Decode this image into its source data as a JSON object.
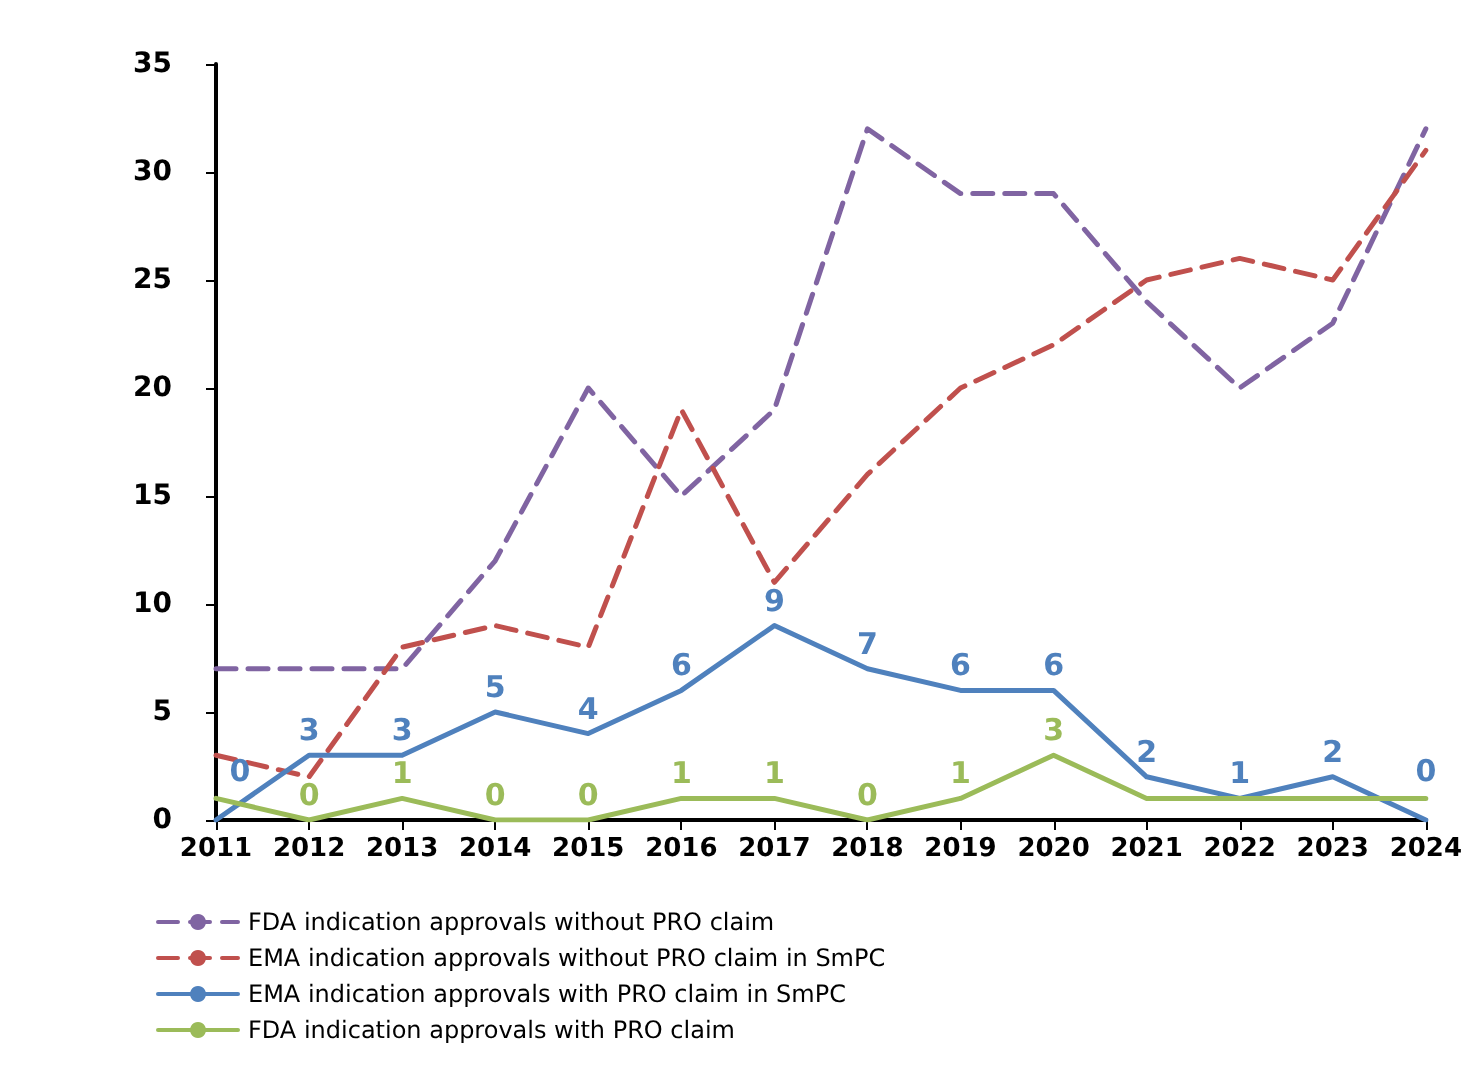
{
  "chart_data": {
    "type": "line",
    "categories": [
      "2011",
      "2012",
      "2013",
      "2014",
      "2015",
      "2016",
      "2017",
      "2018",
      "2019",
      "2020",
      "2021",
      "2022",
      "2023",
      "2024"
    ],
    "series": [
      {
        "name": "FDA indication approvals without PRO claim",
        "color": "#8064a2",
        "line_style": "dashed",
        "values": [
          7,
          7,
          7,
          12,
          20,
          15,
          19,
          32,
          29,
          29,
          24,
          20,
          23,
          32
        ]
      },
      {
        "name": "EMA indication approvals without PRO claim in SmPC",
        "color": "#c0504d",
        "line_style": "dashed",
        "values": [
          3,
          2,
          8,
          9,
          8,
          19,
          11,
          16,
          20,
          22,
          25,
          26,
          25,
          31
        ]
      },
      {
        "name": "EMA indication approvals with PRO claim in SmPC",
        "color": "#4f81bd",
        "line_style": "solid",
        "values": [
          0,
          3,
          3,
          5,
          4,
          6,
          9,
          7,
          6,
          6,
          2,
          1,
          2,
          0
        ],
        "value_labels": [
          "0",
          "3",
          "3",
          "5",
          "4",
          "6",
          "9",
          "7",
          "6",
          "6",
          "2",
          "1",
          "2",
          "0"
        ]
      },
      {
        "name": "FDA indication approvals with PRO claim",
        "color": "#9bbb59",
        "line_style": "solid",
        "values": [
          1,
          0,
          1,
          0,
          0,
          1,
          1,
          0,
          1,
          3,
          1,
          1,
          1,
          1
        ],
        "value_labels": [
          null,
          "0",
          "1",
          "0",
          "0",
          "1",
          "1",
          "0",
          "1",
          "3",
          null,
          null,
          null,
          null
        ]
      }
    ],
    "ylim": [
      0,
      35
    ],
    "yticks": [
      0,
      5,
      10,
      15,
      20,
      25,
      30,
      35
    ],
    "grid": false,
    "legend": "bottom",
    "marker": "none"
  }
}
